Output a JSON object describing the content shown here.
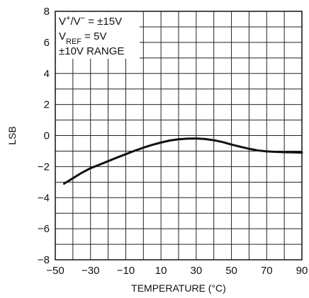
{
  "chart_data": {
    "type": "line",
    "title": "",
    "xlabel": "TEMPERATURE (°C)",
    "ylabel": "LSB",
    "xlim": [
      -50,
      90
    ],
    "ylim": [
      -8,
      8
    ],
    "x_ticks": [
      -50,
      -30,
      -10,
      10,
      30,
      50,
      70,
      90
    ],
    "y_ticks": [
      -8,
      -6,
      -4,
      -2,
      0,
      2,
      4,
      6,
      8
    ],
    "grid": true,
    "legend": "none",
    "annotation_position": "top-left",
    "annotations": [
      {
        "parts": [
          {
            "t": "V"
          },
          {
            "t": "+",
            "sup": true
          },
          {
            "t": "/V"
          },
          {
            "t": "−",
            "sup": true
          },
          {
            "t": " = ±15V"
          }
        ]
      },
      {
        "parts": [
          {
            "t": "V"
          },
          {
            "t": "REF",
            "sub": true
          },
          {
            "t": " = 5V"
          }
        ]
      },
      {
        "parts": [
          {
            "t": "±10V RANGE"
          }
        ]
      }
    ],
    "series": [
      {
        "color": "#111111",
        "points": [
          [
            -45,
            -3.1
          ],
          [
            -40,
            -2.75
          ],
          [
            -35,
            -2.4
          ],
          [
            -30,
            -2.1
          ],
          [
            -25,
            -1.88
          ],
          [
            -20,
            -1.65
          ],
          [
            -15,
            -1.42
          ],
          [
            -10,
            -1.2
          ],
          [
            -5,
            -0.98
          ],
          [
            0,
            -0.78
          ],
          [
            5,
            -0.6
          ],
          [
            10,
            -0.45
          ],
          [
            15,
            -0.32
          ],
          [
            20,
            -0.24
          ],
          [
            25,
            -0.2
          ],
          [
            30,
            -0.19
          ],
          [
            35,
            -0.22
          ],
          [
            40,
            -0.3
          ],
          [
            45,
            -0.42
          ],
          [
            50,
            -0.58
          ],
          [
            55,
            -0.72
          ],
          [
            60,
            -0.85
          ],
          [
            65,
            -0.96
          ],
          [
            70,
            -1.02
          ],
          [
            75,
            -1.05
          ],
          [
            80,
            -1.07
          ],
          [
            85,
            -1.08
          ],
          [
            90,
            -1.1
          ]
        ]
      }
    ]
  }
}
